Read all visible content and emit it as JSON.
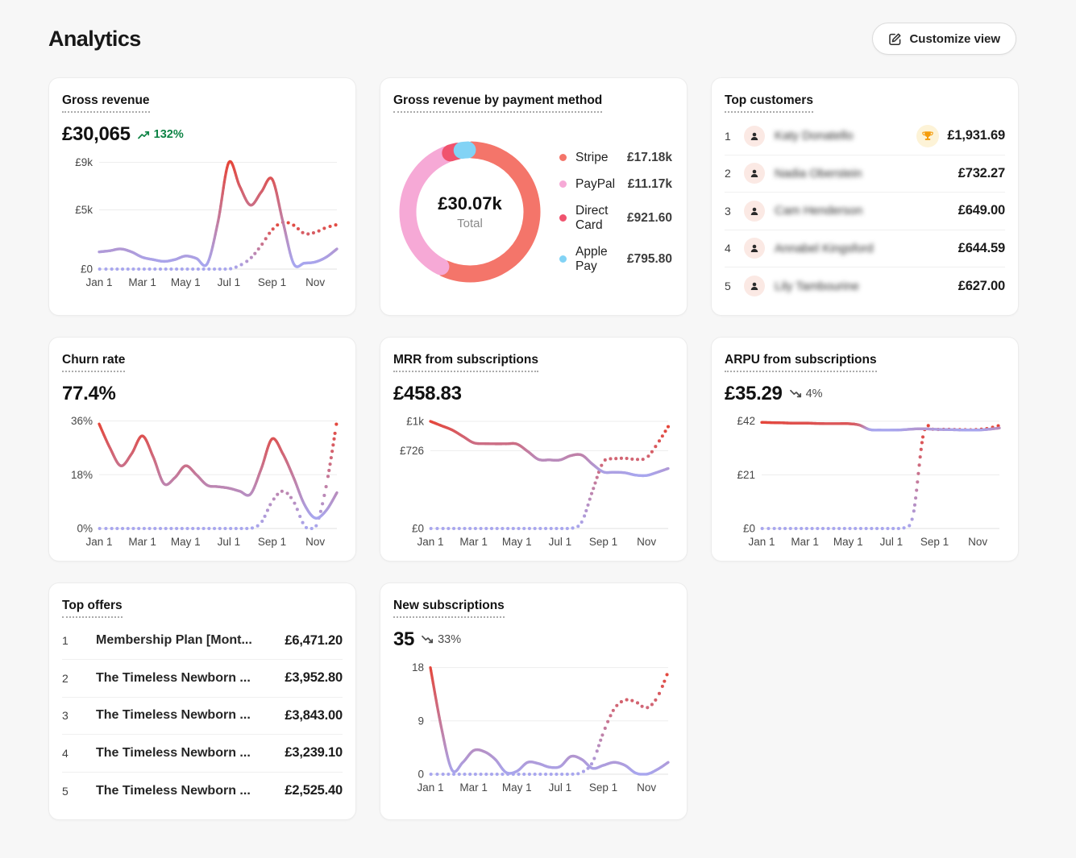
{
  "page": {
    "title": "Analytics",
    "customize_button": "Customize view"
  },
  "palette": {
    "line_low": "#a8a6ee",
    "line_high": "#e5463a",
    "grid": "#ededed",
    "grid_zero": "#e0e0e0",
    "tick_text": "#474747",
    "trend_up_green": "#0e8345",
    "trend_down_gray": "#4c4c4c"
  },
  "cards": {
    "gross_revenue": {
      "title": "Gross revenue",
      "value": "£30,065",
      "trend": {
        "direction": "up",
        "label": "132%"
      },
      "chart_data": {
        "type": "line",
        "x_labels": [
          "Jan 1",
          "Mar 1",
          "May 1",
          "Jul 1",
          "Sep 1",
          "Nov"
        ],
        "x_label_step": 4,
        "y_ticks": [
          {
            "label": "£0",
            "value": 0
          },
          {
            "label": "£5k",
            "value": 5000
          },
          {
            "label": "£9k",
            "value": 9000
          }
        ],
        "y_scale_max": 9450,
        "series": [
          {
            "style": "dotted",
            "values": [
              0,
              0,
              0,
              0,
              0,
              0,
              0,
              0,
              0,
              0,
              0,
              0,
              0,
              300,
              900,
              2000,
              3300,
              3950,
              3700,
              3000,
              3100,
              3500,
              3750
            ]
          },
          {
            "style": "solid",
            "values": [
              1450,
              1550,
              1700,
              1450,
              1000,
              800,
              650,
              800,
              1100,
              900,
              450,
              4000,
              9000,
              7000,
              5400,
              6500,
              7600,
              4000,
              450,
              500,
              600,
              1000,
              1700
            ]
          }
        ]
      }
    },
    "payment_method": {
      "title": "Gross revenue by payment method",
      "chart_data": {
        "type": "donut",
        "center_value": "£30.07k",
        "center_label": "Total",
        "slices": [
          {
            "label": "Stripe",
            "value": 17180,
            "value_label": "£17.18k",
            "color": "#f4756a"
          },
          {
            "label": "PayPal",
            "value": 11170,
            "value_label": "£11.17k",
            "color": "#f6a9d6"
          },
          {
            "label": "Direct Card",
            "value": 921.6,
            "value_label": "£921.60",
            "color": "#f0536e"
          },
          {
            "label": "Apple Pay",
            "value": 795.8,
            "value_label": "£795.80",
            "color": "#82d3f5"
          }
        ]
      }
    },
    "top_customers": {
      "title": "Top customers",
      "rows": [
        {
          "rank": "1",
          "name": "Katy Donatello",
          "amount": "£1,931.69",
          "trophy": true
        },
        {
          "rank": "2",
          "name": "Nadia Oberstein",
          "amount": "£732.27",
          "trophy": false
        },
        {
          "rank": "3",
          "name": "Cam Henderson",
          "amount": "£649.00",
          "trophy": false
        },
        {
          "rank": "4",
          "name": "Annabel Kingsford",
          "amount": "£644.59",
          "trophy": false
        },
        {
          "rank": "5",
          "name": "Lily Tambourine",
          "amount": "£627.00",
          "trophy": false
        }
      ]
    },
    "churn_rate": {
      "title": "Churn rate",
      "value": "77.4%",
      "chart_data": {
        "type": "line",
        "x_labels": [
          "Jan 1",
          "Mar 1",
          "May 1",
          "Jul 1",
          "Sep 1",
          "Nov"
        ],
        "x_label_step": 4,
        "y_ticks": [
          {
            "label": "0%",
            "value": 0
          },
          {
            "label": "18%",
            "value": 18
          },
          {
            "label": "36%",
            "value": 36
          }
        ],
        "y_scale_max": 37.5,
        "series": [
          {
            "style": "dotted",
            "values": [
              0,
              0,
              0,
              0,
              0,
              0,
              0,
              0,
              0,
              0,
              0,
              0,
              0,
              0,
              0,
              2,
              9,
              12.5,
              9,
              1,
              0.3,
              14,
              36
            ]
          },
          {
            "style": "solid",
            "values": [
              35,
              27,
              21,
              25,
              31,
              24,
              15,
              17,
              21,
              18,
              14.5,
              14,
              13.5,
              12.5,
              11.5,
              20,
              30,
              25,
              17,
              8,
              3.5,
              6,
              12
            ]
          }
        ]
      }
    },
    "mrr": {
      "title": "MRR from subscriptions",
      "value": "£458.83",
      "chart_data": {
        "type": "line",
        "x_labels": [
          "Jan 1",
          "Mar 1",
          "May 1",
          "Jul 1",
          "Sep 1",
          "Nov"
        ],
        "x_label_step": 4,
        "y_ticks": [
          {
            "label": "£0",
            "value": 0
          },
          {
            "label": "£726",
            "value": 726
          },
          {
            "label": "£1k",
            "value": 1000
          }
        ],
        "y_scale_max": 1045,
        "series": [
          {
            "style": "dotted",
            "values": [
              0,
              0,
              0,
              0,
              0,
              0,
              0,
              0,
              0,
              0,
              0,
              0,
              0,
              0,
              60,
              350,
              620,
              650,
              655,
              645,
              660,
              790,
              950
            ]
          },
          {
            "style": "solid",
            "values": [
              1000,
              960,
              920,
              860,
              800,
              792,
              790,
              790,
              788,
              720,
              645,
              640,
              640,
              680,
              685,
              600,
              528,
              525,
              520,
              498,
              495,
              525,
              560
            ]
          }
        ]
      }
    },
    "arpu": {
      "title": "ARPU from subscriptions",
      "value": "£35.29",
      "trend": {
        "direction": "down",
        "label": "4%"
      },
      "chart_data": {
        "type": "line",
        "x_labels": [
          "Jan 1",
          "Mar 1",
          "May 1",
          "Jul 1",
          "Sep 1",
          "Nov"
        ],
        "x_label_step": 4,
        "y_ticks": [
          {
            "label": "£0",
            "value": 0
          },
          {
            "label": "£21",
            "value": 21
          },
          {
            "label": "£42",
            "value": 42
          }
        ],
        "y_scale_max": 43.8,
        "series": [
          {
            "style": "dotted",
            "values": [
              0,
              0,
              0,
              0,
              0,
              0,
              0,
              0,
              0,
              0,
              0,
              0,
              0,
              0,
              5,
              37.5,
              38.6,
              38.8,
              38.7,
              38.6,
              38.7,
              39.2,
              40.3
            ]
          },
          {
            "style": "solid",
            "values": [
              41.5,
              41.4,
              41.3,
              41.2,
              41.2,
              41.1,
              41,
              41,
              41,
              40.5,
              38.7,
              38.5,
              38.5,
              38.6,
              38.9,
              39,
              38.8,
              38.7,
              38.6,
              38.5,
              38.5,
              38.8,
              39.3
            ]
          }
        ]
      }
    },
    "top_offers": {
      "title": "Top offers",
      "rows": [
        {
          "rank": "1",
          "name": "Membership Plan [Mont...",
          "amount": "£6,471.20"
        },
        {
          "rank": "2",
          "name": "The Timeless Newborn ...",
          "amount": "£3,952.80"
        },
        {
          "rank": "3",
          "name": "The Timeless Newborn ...",
          "amount": "£3,843.00"
        },
        {
          "rank": "4",
          "name": "The Timeless Newborn ...",
          "amount": "£3,239.10"
        },
        {
          "rank": "5",
          "name": "The Timeless Newborn ...",
          "amount": "£2,525.40"
        }
      ]
    },
    "new_subscriptions": {
      "title": "New subscriptions",
      "value": "35",
      "trend": {
        "direction": "down",
        "label": "33%"
      },
      "chart_data": {
        "type": "line",
        "x_labels": [
          "Jan 1",
          "Mar 1",
          "May 1",
          "Jul 1",
          "Sep 1",
          "Nov"
        ],
        "x_label_step": 4,
        "y_ticks": [
          {
            "label": "0",
            "value": 0
          },
          {
            "label": "9",
            "value": 9
          },
          {
            "label": "18",
            "value": 18
          }
        ],
        "y_scale_max": 18.9,
        "series": [
          {
            "style": "dotted",
            "values": [
              0,
              0,
              0,
              0,
              0,
              0,
              0,
              0,
              0,
              0,
              0,
              0,
              0,
              0,
              0.3,
              2,
              7,
              11,
              12.5,
              12.2,
              11.2,
              13,
              17.3
            ]
          },
          {
            "style": "solid",
            "values": [
              18,
              8,
              0.7,
              2,
              4,
              3.8,
              2.5,
              0.3,
              0.5,
              2,
              1.8,
              1.2,
              1.3,
              3,
              2.5,
              1,
              1.5,
              2,
              1.5,
              0.2,
              0,
              0.8,
              2
            ]
          }
        ]
      }
    }
  }
}
